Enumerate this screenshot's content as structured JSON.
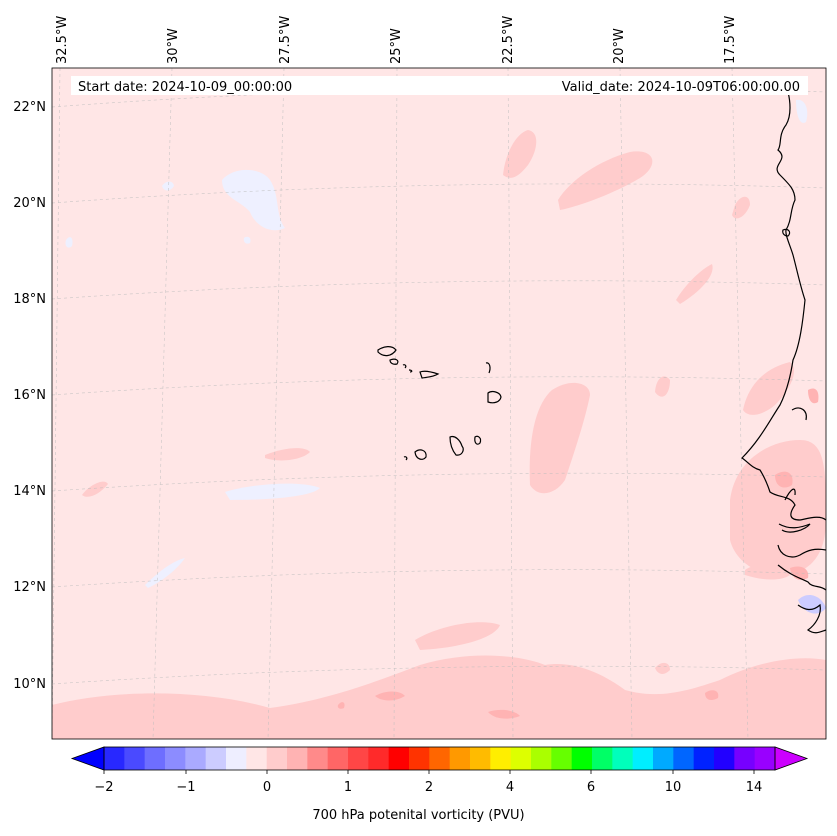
{
  "map": {
    "start_date": "Start date: 2024-10-09_00:00:00",
    "valid_date": "Valid_date: 2024-10-09T06:00:00.00",
    "lon_labels": [
      "32.5°W",
      "30°W",
      "27.5°W",
      "25°W",
      "22.5°W",
      "20°W",
      "17.5°W"
    ],
    "lat_labels": [
      "22°N",
      "20°N",
      "18°N",
      "16°N",
      "14°N",
      "12°N",
      "10°N"
    ],
    "colors": {
      "background": "#ffe6e6",
      "light_red": "#ffcccc",
      "mid_red": "#ffb3b3",
      "light_blue": "#eef0ff",
      "coast": "#000000"
    }
  },
  "colorbar": {
    "title": "700 hPa potenital vorticity (PVU)",
    "ticks": [
      "−2",
      "−1",
      "0",
      "1",
      "2",
      "4",
      "6",
      "10",
      "14"
    ],
    "colors": [
      "#0000ff",
      "#2828ff",
      "#4a4aff",
      "#6e6eff",
      "#8c8cff",
      "#aaaaff",
      "#ccccff",
      "#eeeeff",
      "#ffe6e6",
      "#ffcccc",
      "#ffb3b3",
      "#ff8a8a",
      "#ff6666",
      "#ff4646",
      "#ff2a2a",
      "#ff0000",
      "#ff3300",
      "#ff6600",
      "#ff9900",
      "#ffbb00",
      "#ffee00",
      "#ddff00",
      "#aaff00",
      "#66ff00",
      "#00ff00",
      "#00ff66",
      "#00ffbb",
      "#00eeff",
      "#00aaff",
      "#0066ff",
      "#0022ff",
      "#2200ff",
      "#7700ff",
      "#9900ff",
      "#cc00ff"
    ]
  }
}
